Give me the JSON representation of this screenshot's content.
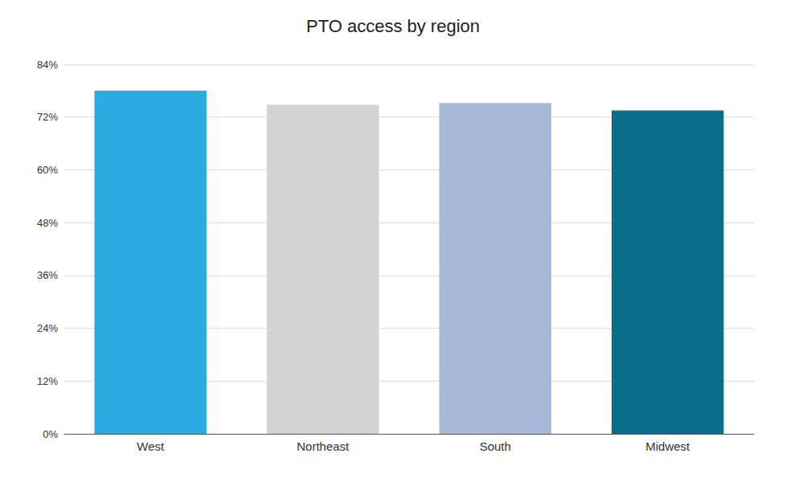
{
  "chart_data": {
    "type": "bar",
    "title": "PTO access by region",
    "categories": [
      "West",
      "Northeast",
      "South",
      "Midwest"
    ],
    "values": [
      0.78,
      0.748,
      0.752,
      0.735
    ],
    "colors": [
      "#29ABE2",
      "#D3D3D3",
      "#A8B8D8",
      "#0A6E8A"
    ],
    "ylim": [
      0,
      0.84
    ],
    "yticks": [
      {
        "value": 0.0,
        "label": "0%"
      },
      {
        "value": 0.12,
        "label": "12%"
      },
      {
        "value": 0.24,
        "label": "24%"
      },
      {
        "value": 0.36,
        "label": "36%"
      },
      {
        "value": 0.48,
        "label": "48%"
      },
      {
        "value": 0.6,
        "label": "60%"
      },
      {
        "value": 0.72,
        "label": "72%"
      },
      {
        "value": 0.84,
        "label": "84%"
      }
    ],
    "grid": true
  }
}
